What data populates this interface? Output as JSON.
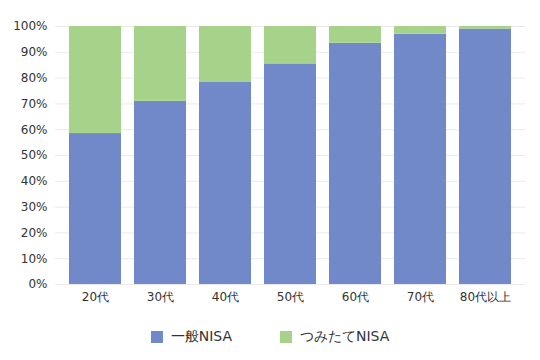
{
  "chart_data": {
    "type": "bar",
    "stacked": true,
    "categories": [
      "20代",
      "30代",
      "40代",
      "50代",
      "60代",
      "70代",
      "80代以上"
    ],
    "series": [
      {
        "name": "一般NISA",
        "color": "#7189c8",
        "values": [
          58.5,
          71,
          78.5,
          85.5,
          93.5,
          97,
          99
        ]
      },
      {
        "name": "つみたてNISA",
        "color": "#a6d389",
        "values": [
          41.5,
          29,
          21.5,
          14.5,
          6.5,
          3,
          1
        ]
      }
    ],
    "ylim": [
      0,
      100
    ],
    "yticks": [
      {
        "value": 0,
        "label": "0%"
      },
      {
        "value": 10,
        "label": "10%"
      },
      {
        "value": 20,
        "label": "20%"
      },
      {
        "value": 30,
        "label": "30%"
      },
      {
        "value": 40,
        "label": "40%"
      },
      {
        "value": 50,
        "label": "50%"
      },
      {
        "value": 60,
        "label": "60%"
      },
      {
        "value": 70,
        "label": "70%"
      },
      {
        "value": 80,
        "label": "80%"
      },
      {
        "value": 90,
        "label": "90%"
      },
      {
        "value": 100,
        "label": "100%"
      }
    ],
    "grid": true,
    "legend": "bottom"
  }
}
